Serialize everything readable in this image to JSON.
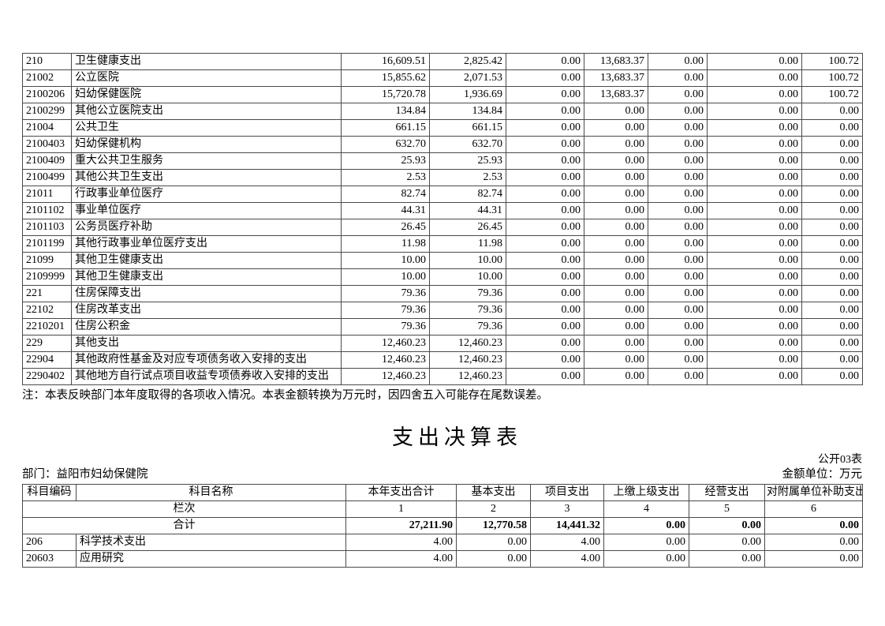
{
  "colors": {
    "background": "#ffffff",
    "text": "#000000",
    "table_border": "#4a4a4a"
  },
  "top_table": {
    "description_note": "注：本表反映部门本年度取得的各项收入情况。本表金额转换为万元时，因四舍五入可能存在尾数误差。",
    "rows": [
      {
        "code": "210",
        "name": "卫生健康支出",
        "values": [
          "16,609.51",
          "2,825.42",
          "0.00",
          "13,683.37",
          "0.00",
          "0.00",
          "100.72"
        ]
      },
      {
        "code": "21002",
        "name": "公立医院",
        "values": [
          "15,855.62",
          "2,071.53",
          "0.00",
          "13,683.37",
          "0.00",
          "0.00",
          "100.72"
        ]
      },
      {
        "code": "2100206",
        "name": "妇幼保健医院",
        "values": [
          "15,720.78",
          "1,936.69",
          "0.00",
          "13,683.37",
          "0.00",
          "0.00",
          "100.72"
        ]
      },
      {
        "code": "2100299",
        "name": "其他公立医院支出",
        "values": [
          "134.84",
          "134.84",
          "0.00",
          "0.00",
          "0.00",
          "0.00",
          "0.00"
        ]
      },
      {
        "code": "21004",
        "name": "公共卫生",
        "values": [
          "661.15",
          "661.15",
          "0.00",
          "0.00",
          "0.00",
          "0.00",
          "0.00"
        ]
      },
      {
        "code": "2100403",
        "name": "妇幼保健机构",
        "values": [
          "632.70",
          "632.70",
          "0.00",
          "0.00",
          "0.00",
          "0.00",
          "0.00"
        ]
      },
      {
        "code": "2100409",
        "name": "重大公共卫生服务",
        "values": [
          "25.93",
          "25.93",
          "0.00",
          "0.00",
          "0.00",
          "0.00",
          "0.00"
        ]
      },
      {
        "code": "2100499",
        "name": "其他公共卫生支出",
        "values": [
          "2.53",
          "2.53",
          "0.00",
          "0.00",
          "0.00",
          "0.00",
          "0.00"
        ]
      },
      {
        "code": "21011",
        "name": "行政事业单位医疗",
        "values": [
          "82.74",
          "82.74",
          "0.00",
          "0.00",
          "0.00",
          "0.00",
          "0.00"
        ]
      },
      {
        "code": "2101102",
        "name": "事业单位医疗",
        "values": [
          "44.31",
          "44.31",
          "0.00",
          "0.00",
          "0.00",
          "0.00",
          "0.00"
        ]
      },
      {
        "code": "2101103",
        "name": "公务员医疗补助",
        "values": [
          "26.45",
          "26.45",
          "0.00",
          "0.00",
          "0.00",
          "0.00",
          "0.00"
        ]
      },
      {
        "code": "2101199",
        "name": "其他行政事业单位医疗支出",
        "values": [
          "11.98",
          "11.98",
          "0.00",
          "0.00",
          "0.00",
          "0.00",
          "0.00"
        ]
      },
      {
        "code": "21099",
        "name": "其他卫生健康支出",
        "values": [
          "10.00",
          "10.00",
          "0.00",
          "0.00",
          "0.00",
          "0.00",
          "0.00"
        ]
      },
      {
        "code": "2109999",
        "name": "其他卫生健康支出",
        "values": [
          "10.00",
          "10.00",
          "0.00",
          "0.00",
          "0.00",
          "0.00",
          "0.00"
        ]
      },
      {
        "code": "221",
        "name": "住房保障支出",
        "values": [
          "79.36",
          "79.36",
          "0.00",
          "0.00",
          "0.00",
          "0.00",
          "0.00"
        ]
      },
      {
        "code": "22102",
        "name": "住房改革支出",
        "values": [
          "79.36",
          "79.36",
          "0.00",
          "0.00",
          "0.00",
          "0.00",
          "0.00"
        ]
      },
      {
        "code": "2210201",
        "name": "住房公积金",
        "values": [
          "79.36",
          "79.36",
          "0.00",
          "0.00",
          "0.00",
          "0.00",
          "0.00"
        ]
      },
      {
        "code": "229",
        "name": "其他支出",
        "values": [
          "12,460.23",
          "12,460.23",
          "0.00",
          "0.00",
          "0.00",
          "0.00",
          "0.00"
        ]
      },
      {
        "code": "22904",
        "name": "其他政府性基金及对应专项债务收入安排的支出",
        "values": [
          "12,460.23",
          "12,460.23",
          "0.00",
          "0.00",
          "0.00",
          "0.00",
          "0.00"
        ]
      },
      {
        "code": "2290402",
        "name": "其他地方自行试点项目收益专项债券收入安排的支出",
        "values": [
          "12,460.23",
          "12,460.23",
          "0.00",
          "0.00",
          "0.00",
          "0.00",
          "0.00"
        ]
      }
    ]
  },
  "section": {
    "title": "支出决算表",
    "table_label": "公开03表",
    "department": "部门：益阳市妇幼保健院",
    "unit": "金额单位：万元"
  },
  "bottom_table": {
    "headers": [
      "科目编码",
      "科目名称",
      "本年支出合计",
      "基本支出",
      "项目支出",
      "上缴上级支出",
      "经营支出",
      "对附属单位补助支出"
    ],
    "lanci_label": "栏次",
    "lanci_numbers": [
      "1",
      "2",
      "3",
      "4",
      "5",
      "6"
    ],
    "total_label": "合计",
    "total_values": [
      "27,211.90",
      "12,770.58",
      "14,441.32",
      "0.00",
      "0.00",
      "0.00"
    ],
    "rows": [
      {
        "code": "206",
        "name": "科学技术支出",
        "values": [
          "4.00",
          "0.00",
          "4.00",
          "0.00",
          "0.00",
          "0.00"
        ]
      },
      {
        "code": "20603",
        "name": "应用研究",
        "values": [
          "4.00",
          "0.00",
          "4.00",
          "0.00",
          "0.00",
          "0.00"
        ]
      }
    ]
  }
}
